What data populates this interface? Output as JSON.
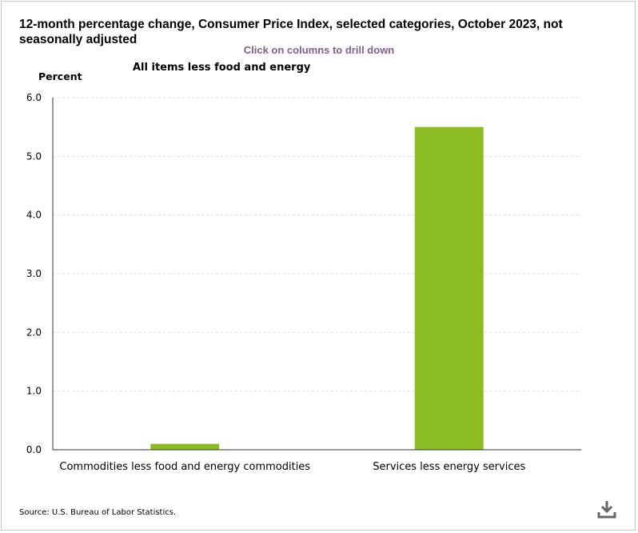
{
  "title": "12-month percentage change, Consumer Price Index, selected categories, October 2023, not seasonally adjusted",
  "drill_hint": "Click on columns to drill down",
  "source": "Source: U.S. Bureau of Labor Statistics.",
  "colors": {
    "bar": "#8bbd23",
    "grid": "#e0e0e0",
    "axis": "#333333",
    "hint": "#7f5f8f"
  },
  "icons": {
    "download": "download-icon"
  },
  "chart_data": {
    "type": "bar",
    "title": "All items less food and energy",
    "ylabel": "Percent",
    "xlabel": "",
    "ylim": [
      0,
      6
    ],
    "yticks": [
      0,
      1,
      2,
      3,
      4,
      5,
      6
    ],
    "ytick_labels": [
      "0.0",
      "1.0",
      "2.0",
      "3.0",
      "4.0",
      "5.0",
      "6.0"
    ],
    "categories": [
      "Commodities less food and energy commodities",
      "Services less energy services"
    ],
    "values": [
      0.1,
      5.5
    ],
    "grid": true,
    "legend": "none"
  }
}
